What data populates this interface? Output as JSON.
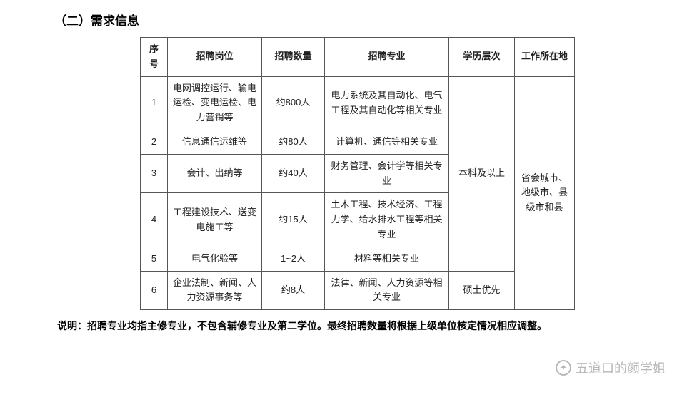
{
  "heading": "（二）需求信息",
  "columns": [
    "序号",
    "招聘岗位",
    "招聘数量",
    "招聘专业",
    "学历层次",
    "工作所在地"
  ],
  "rows": [
    {
      "idx": "1",
      "position": "电网调控运行、输电运检、变电运检、电力营销等",
      "qty": "约800人",
      "major": "电力系统及其自动化、电气工程及其自动化等相关专业"
    },
    {
      "idx": "2",
      "position": "信息通信运维等",
      "qty": "约80人",
      "major": "计算机、通信等相关专业"
    },
    {
      "idx": "3",
      "position": "会计、出纳等",
      "qty": "约40人",
      "major": "财务管理、会计学等相关专业"
    },
    {
      "idx": "4",
      "position": "工程建设技术、送变电施工等",
      "qty": "约15人",
      "major": "土木工程、技术经济、工程力学、给水排水工程等相关专业"
    },
    {
      "idx": "5",
      "position": "电气化验等",
      "qty": "1~2人",
      "major": "材料等相关专业"
    },
    {
      "idx": "6",
      "position": "企业法制、新闻、人力资源事务等",
      "qty": "约8人",
      "major": "法律、新闻、人力资源等相关专业"
    }
  ],
  "edu_group1": "本科及以上",
  "edu_group2": "硕士优先",
  "location_merged": "省会城市、地级市、县级市和县",
  "footnote": "说明：招聘专业均指主修专业，不包含辅修专业及第二学位。最终招聘数量将根据上级单位核定情况相应调整。",
  "watermark_text": "五道口的颜学姐"
}
